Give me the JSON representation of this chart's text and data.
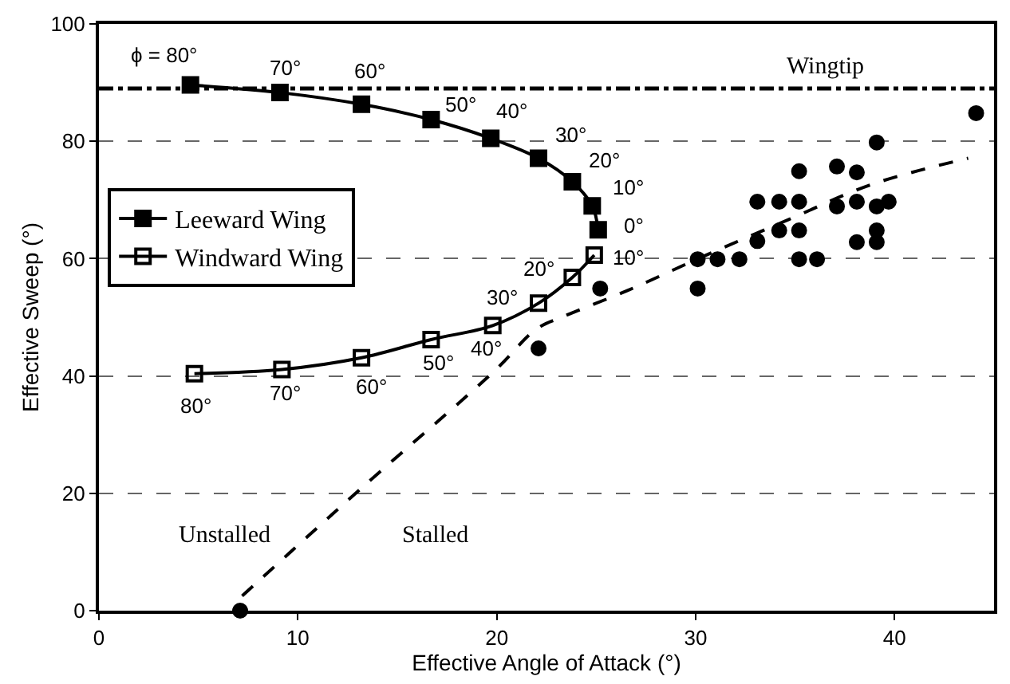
{
  "chart_data": {
    "type": "line",
    "xlabel": "Effective Angle of Attack (°)",
    "ylabel": "Effective Sweep (°)",
    "xlim": [
      0,
      45
    ],
    "xticks": [
      0,
      10,
      20,
      30,
      40
    ],
    "ylim": [
      0,
      100
    ],
    "yticks": [
      0,
      20,
      40,
      60,
      80,
      100
    ],
    "grid": "y",
    "legend": "left",
    "series": [
      {
        "name": "Leeward Wing",
        "marker": "square",
        "color": "#000000",
        "x": [
          4.6,
          9.1,
          13.2,
          16.7,
          19.7,
          22.1,
          23.8,
          24.8,
          25.1
        ],
        "values": [
          89.6,
          88.3,
          86.3,
          83.7,
          80.5,
          77.1,
          73.1,
          69.0,
          64.9
        ]
      },
      {
        "name": "Windward Wing",
        "marker": "square-open",
        "color": "#000000",
        "x": [
          24.9,
          23.8,
          22.1,
          19.8,
          16.7,
          13.2,
          9.2,
          4.8
        ],
        "values": [
          60.6,
          56.8,
          52.4,
          48.6,
          46.2,
          43.1,
          41.1,
          40.4
        ]
      },
      {
        "type": "scatter",
        "marker": "circle",
        "color": "#000000",
        "x": [
          7.1,
          22.1,
          25.2,
          30.1,
          30.1,
          31.1,
          32.2,
          33.1,
          33.1,
          34.2,
          34.2,
          35.2,
          35.2,
          35.2,
          35.2,
          36.1,
          37.1,
          37.1,
          38.1,
          38.1,
          38.1,
          39.1,
          39.1,
          39.1,
          39.1,
          39.7,
          44.1
        ],
        "values": [
          0,
          44.7,
          54.9,
          54.9,
          59.9,
          59.9,
          59.9,
          63.0,
          69.7,
          69.7,
          64.8,
          64.8,
          69.7,
          74.9,
          59.9,
          59.9,
          75.7,
          68.9,
          74.7,
          69.7,
          62.8,
          79.8,
          68.9,
          64.8,
          62.8,
          69.7,
          84.8
        ]
      },
      {
        "marker": "none",
        "line_style": "dashed",
        "color": "#000000",
        "x": [
          7.2,
          13.1,
          19.9,
          22.0,
          23.4,
          26.6,
          30.2,
          34.7,
          38.9,
          43.7
        ],
        "values": [
          2.5,
          20.6,
          40.9,
          48.0,
          50.2,
          54.6,
          60.1,
          66.7,
          72.7,
          77.1
        ]
      }
    ],
    "ref_lines": [
      {
        "axis": "y",
        "value": 89,
        "label": "Wingtip",
        "line_style": "dashdot",
        "color": "#000000"
      }
    ],
    "annotations": [
      "Unstalled",
      "Stalled",
      {
        "text": "ϕ = 80°",
        "x": 4.6,
        "y": 89.6
      },
      {
        "text": "70°",
        "x": 9.1,
        "y": 88.3
      },
      {
        "text": "60°",
        "x": 13.2,
        "y": 86.3
      },
      {
        "text": "50°",
        "x": 16.7,
        "y": 83.7
      },
      {
        "text": "40°",
        "x": 19.7,
        "y": 80.5
      },
      {
        "text": "30°",
        "x": 22.1,
        "y": 77.1
      },
      {
        "text": "20°",
        "x": 23.8,
        "y": 73.1
      },
      {
        "text": "10°",
        "x": 24.8,
        "y": 69.0
      },
      {
        "text": "0°",
        "x": 25.1,
        "y": 64.9
      },
      {
        "text": "10°",
        "x": 24.9,
        "y": 60.6
      },
      {
        "text": "20°",
        "x": 23.8,
        "y": 56.8
      },
      {
        "text": "30°",
        "x": 22.1,
        "y": 52.4
      },
      {
        "text": "40°",
        "x": 19.8,
        "y": 48.6
      },
      {
        "text": "50°",
        "x": 16.7,
        "y": 46.2
      },
      {
        "text": "60°",
        "x": 13.2,
        "y": 43.1
      },
      {
        "text": "70°",
        "x": 9.2,
        "y": 41.1
      },
      {
        "text": "80°",
        "x": 4.8,
        "y": 40.4
      }
    ]
  }
}
